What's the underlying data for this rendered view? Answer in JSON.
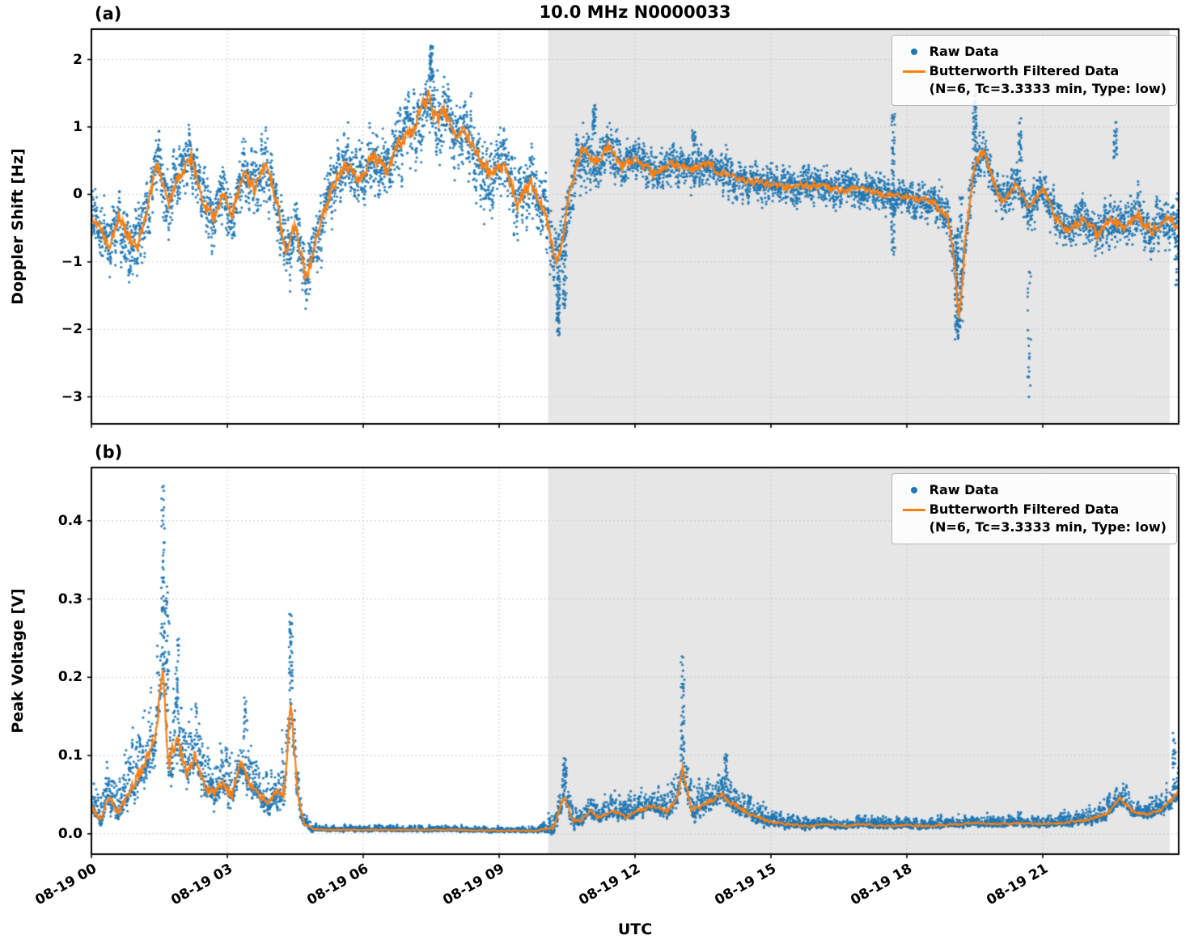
{
  "chart_data": {
    "type": "scatter",
    "title": "10.0 MHz N0000033",
    "xlabel": "UTC",
    "xlim": [
      0,
      24
    ],
    "xticks": {
      "values": [
        0,
        3,
        6,
        9,
        12,
        15,
        18,
        21
      ],
      "labels": [
        "08-19 00",
        "08-19 03",
        "08-19 06",
        "08-19 09",
        "08-19 12",
        "08-19 15",
        "08-19 18",
        "08-19 21"
      ]
    },
    "colors": {
      "raw": "#1f77b4",
      "filtered": "#ff7f0e",
      "shade": "#e6e6e6",
      "grid": "#c9c9c9"
    },
    "shaded_region": {
      "x0": 10.08,
      "x1": 23.8
    },
    "legend": {
      "raw": "Raw Data",
      "filtered": "Butterworth Filtered Data",
      "filtered_params": "(N=6, Tc=3.3333 min, Type: low)"
    },
    "panels": [
      {
        "letter": "(a)",
        "ylabel": "Doppler Shift [Hz]",
        "ylim": [
          -3.4,
          2.45
        ],
        "ytick_values": [
          2,
          1,
          0,
          -1,
          -2,
          -3
        ],
        "ytick_labels": [
          "2",
          "1",
          "0",
          "−1",
          "−2",
          "−3"
        ],
        "skew": false,
        "filtered": [
          [
            0,
            -0.35
          ],
          [
            0.2,
            -0.55
          ],
          [
            0.4,
            -0.75
          ],
          [
            0.6,
            -0.3
          ],
          [
            0.8,
            -0.6
          ],
          [
            1.0,
            -0.85
          ],
          [
            1.2,
            -0.3
          ],
          [
            1.45,
            0.45
          ],
          [
            1.7,
            -0.15
          ],
          [
            1.9,
            0.25
          ],
          [
            2.2,
            0.55
          ],
          [
            2.45,
            -0.05
          ],
          [
            2.7,
            -0.35
          ],
          [
            2.9,
            0.0
          ],
          [
            3.1,
            -0.3
          ],
          [
            3.35,
            0.3
          ],
          [
            3.6,
            0.1
          ],
          [
            3.85,
            0.45
          ],
          [
            4.1,
            -0.1
          ],
          [
            4.3,
            -0.9
          ],
          [
            4.5,
            -0.45
          ],
          [
            4.75,
            -1.25
          ],
          [
            5.0,
            -0.6
          ],
          [
            5.3,
            0.1
          ],
          [
            5.6,
            0.45
          ],
          [
            5.9,
            0.2
          ],
          [
            6.2,
            0.55
          ],
          [
            6.5,
            0.35
          ],
          [
            6.8,
            0.75
          ],
          [
            7.1,
            0.95
          ],
          [
            7.45,
            1.45
          ],
          [
            7.6,
            1.1
          ],
          [
            7.8,
            1.25
          ],
          [
            8.0,
            0.85
          ],
          [
            8.2,
            1.0
          ],
          [
            8.5,
            0.6
          ],
          [
            8.8,
            0.3
          ],
          [
            9.1,
            0.45
          ],
          [
            9.4,
            -0.1
          ],
          [
            9.7,
            0.15
          ],
          [
            10.0,
            -0.2
          ],
          [
            10.25,
            -1.05
          ],
          [
            10.4,
            -0.7
          ],
          [
            10.6,
            0.2
          ],
          [
            10.85,
            0.65
          ],
          [
            11.1,
            0.45
          ],
          [
            11.4,
            0.7
          ],
          [
            11.7,
            0.4
          ],
          [
            12.0,
            0.55
          ],
          [
            12.4,
            0.3
          ],
          [
            12.8,
            0.45
          ],
          [
            13.2,
            0.35
          ],
          [
            13.6,
            0.45
          ],
          [
            14.0,
            0.3
          ],
          [
            14.5,
            0.2
          ],
          [
            15.0,
            0.15
          ],
          [
            15.5,
            0.1
          ],
          [
            16.0,
            0.15
          ],
          [
            16.5,
            0.05
          ],
          [
            17.0,
            0.1
          ],
          [
            17.5,
            0.0
          ],
          [
            18.0,
            -0.05
          ],
          [
            18.5,
            -0.1
          ],
          [
            18.9,
            -0.3
          ],
          [
            19.05,
            -1.0
          ],
          [
            19.15,
            -1.85
          ],
          [
            19.3,
            -0.6
          ],
          [
            19.5,
            0.45
          ],
          [
            19.7,
            0.65
          ],
          [
            19.9,
            0.2
          ],
          [
            20.1,
            -0.1
          ],
          [
            20.4,
            0.15
          ],
          [
            20.7,
            -0.2
          ],
          [
            21.0,
            0.1
          ],
          [
            21.3,
            -0.35
          ],
          [
            21.6,
            -0.55
          ],
          [
            21.9,
            -0.35
          ],
          [
            22.2,
            -0.6
          ],
          [
            22.5,
            -0.35
          ],
          [
            22.8,
            -0.5
          ],
          [
            23.1,
            -0.3
          ],
          [
            23.4,
            -0.55
          ],
          [
            23.7,
            -0.35
          ],
          [
            24.0,
            -0.5
          ]
        ],
        "spread": [
          [
            0,
            0.45
          ],
          [
            1,
            0.5
          ],
          [
            2,
            0.45
          ],
          [
            3,
            0.45
          ],
          [
            4,
            0.5
          ],
          [
            5,
            0.5
          ],
          [
            6,
            0.5
          ],
          [
            6.8,
            0.55
          ],
          [
            7.45,
            0.6
          ],
          [
            8,
            0.55
          ],
          [
            8.8,
            0.5
          ],
          [
            9.5,
            0.55
          ],
          [
            10.25,
            0.5
          ],
          [
            10.8,
            0.45
          ],
          [
            11.5,
            0.35
          ],
          [
            12,
            0.3
          ],
          [
            13,
            0.3
          ],
          [
            14,
            0.3
          ],
          [
            15,
            0.28
          ],
          [
            16,
            0.28
          ],
          [
            17,
            0.26
          ],
          [
            18,
            0.26
          ],
          [
            18.9,
            0.3
          ],
          [
            19.15,
            0.35
          ],
          [
            19.7,
            0.35
          ],
          [
            20.5,
            0.3
          ],
          [
            21.5,
            0.32
          ],
          [
            22.5,
            0.35
          ],
          [
            23.5,
            0.38
          ],
          [
            24,
            0.4
          ]
        ],
        "outliers": [
          {
            "x": 7.5,
            "y0": 1.7,
            "y1": 2.2,
            "n": 50
          },
          {
            "x": 10.3,
            "y0": -2.1,
            "y1": -1.2,
            "n": 60
          },
          {
            "x": 10.45,
            "y0": -1.7,
            "y1": -0.8,
            "n": 35
          },
          {
            "x": 11.1,
            "y0": 0.9,
            "y1": 1.35,
            "n": 30
          },
          {
            "x": 13.3,
            "y0": 0.6,
            "y1": 0.95,
            "n": 20
          },
          {
            "x": 17.7,
            "y0": -0.9,
            "y1": 1.2,
            "n": 70
          },
          {
            "x": 19.1,
            "y0": -2.15,
            "y1": -0.5,
            "n": 90
          },
          {
            "x": 19.2,
            "y0": -1.9,
            "y1": 0.0,
            "n": 50
          },
          {
            "x": 19.5,
            "y0": 0.6,
            "y1": 1.5,
            "n": 45
          },
          {
            "x": 20.5,
            "y0": 0.5,
            "y1": 1.15,
            "n": 25
          },
          {
            "x": 20.7,
            "y0": -3.05,
            "y1": -1.1,
            "n": 22
          },
          {
            "x": 22.6,
            "y0": 0.5,
            "y1": 1.15,
            "n": 25
          },
          {
            "x": 23.95,
            "y0": -1.35,
            "y1": -0.6,
            "n": 18
          }
        ]
      },
      {
        "letter": "(b)",
        "ylabel": "Peak Voltage [V]",
        "ylim": [
          -0.026,
          0.468
        ],
        "ytick_values": [
          0.4,
          0.3,
          0.2,
          0.1,
          0.0
        ],
        "ytick_labels": [
          "0.4",
          "0.3",
          "0.2",
          "0.1",
          "0.0"
        ],
        "skew": true,
        "clamp_min": -0.002,
        "filtered": [
          [
            0,
            0.035
          ],
          [
            0.2,
            0.02
          ],
          [
            0.4,
            0.045
          ],
          [
            0.6,
            0.03
          ],
          [
            0.8,
            0.05
          ],
          [
            1.0,
            0.07
          ],
          [
            1.2,
            0.09
          ],
          [
            1.4,
            0.12
          ],
          [
            1.58,
            0.22
          ],
          [
            1.7,
            0.09
          ],
          [
            1.9,
            0.12
          ],
          [
            2.1,
            0.08
          ],
          [
            2.3,
            0.1
          ],
          [
            2.5,
            0.06
          ],
          [
            2.7,
            0.05
          ],
          [
            2.9,
            0.065
          ],
          [
            3.1,
            0.05
          ],
          [
            3.3,
            0.09
          ],
          [
            3.5,
            0.065
          ],
          [
            3.7,
            0.05
          ],
          [
            3.9,
            0.04
          ],
          [
            4.1,
            0.055
          ],
          [
            4.25,
            0.05
          ],
          [
            4.4,
            0.17
          ],
          [
            4.55,
            0.05
          ],
          [
            4.7,
            0.012
          ],
          [
            4.9,
            0.006
          ],
          [
            5.3,
            0.005
          ],
          [
            6.0,
            0.005
          ],
          [
            7.0,
            0.005
          ],
          [
            8.0,
            0.005
          ],
          [
            9.0,
            0.004
          ],
          [
            9.8,
            0.004
          ],
          [
            10.2,
            0.008
          ],
          [
            10.45,
            0.05
          ],
          [
            10.6,
            0.018
          ],
          [
            10.8,
            0.015
          ],
          [
            11.0,
            0.03
          ],
          [
            11.2,
            0.02
          ],
          [
            11.5,
            0.03
          ],
          [
            11.8,
            0.022
          ],
          [
            12.1,
            0.03
          ],
          [
            12.4,
            0.035
          ],
          [
            12.7,
            0.028
          ],
          [
            12.95,
            0.05
          ],
          [
            13.05,
            0.085
          ],
          [
            13.25,
            0.03
          ],
          [
            13.6,
            0.04
          ],
          [
            13.9,
            0.05
          ],
          [
            14.1,
            0.04
          ],
          [
            14.4,
            0.03
          ],
          [
            14.7,
            0.02
          ],
          [
            15.0,
            0.015
          ],
          [
            15.4,
            0.012
          ],
          [
            15.8,
            0.01
          ],
          [
            16.2,
            0.012
          ],
          [
            16.6,
            0.01
          ],
          [
            17.0,
            0.012
          ],
          [
            17.5,
            0.01
          ],
          [
            18.0,
            0.011
          ],
          [
            18.5,
            0.01
          ],
          [
            19.0,
            0.012
          ],
          [
            19.5,
            0.014
          ],
          [
            20.0,
            0.012
          ],
          [
            20.5,
            0.014
          ],
          [
            21.0,
            0.012
          ],
          [
            21.5,
            0.014
          ],
          [
            22.0,
            0.018
          ],
          [
            22.4,
            0.025
          ],
          [
            22.7,
            0.045
          ],
          [
            23.0,
            0.028
          ],
          [
            23.3,
            0.025
          ],
          [
            23.6,
            0.03
          ],
          [
            23.8,
            0.04
          ],
          [
            24.0,
            0.055
          ]
        ],
        "spread": [
          [
            0,
            0.02
          ],
          [
            0.5,
            0.025
          ],
          [
            1.0,
            0.04
          ],
          [
            1.6,
            0.06
          ],
          [
            2.0,
            0.045
          ],
          [
            2.5,
            0.03
          ],
          [
            3.0,
            0.03
          ],
          [
            3.5,
            0.028
          ],
          [
            4.0,
            0.022
          ],
          [
            4.4,
            0.05
          ],
          [
            4.7,
            0.008
          ],
          [
            5.0,
            0.003
          ],
          [
            6,
            0.003
          ],
          [
            8,
            0.003
          ],
          [
            9.8,
            0.003
          ],
          [
            10.45,
            0.02
          ],
          [
            10.8,
            0.01
          ],
          [
            11.5,
            0.012
          ],
          [
            12.5,
            0.012
          ],
          [
            13.05,
            0.028
          ],
          [
            13.6,
            0.015
          ],
          [
            14.1,
            0.018
          ],
          [
            14.7,
            0.012
          ],
          [
            15.2,
            0.008
          ],
          [
            16,
            0.006
          ],
          [
            17,
            0.006
          ],
          [
            18,
            0.006
          ],
          [
            19,
            0.006
          ],
          [
            20,
            0.006
          ],
          [
            21,
            0.006
          ],
          [
            22,
            0.008
          ],
          [
            22.7,
            0.014
          ],
          [
            23.3,
            0.009
          ],
          [
            24,
            0.016
          ]
        ],
        "outliers": [
          {
            "x": 1.58,
            "y0": 0.25,
            "y1": 0.445,
            "n": 45
          },
          {
            "x": 1.68,
            "y0": 0.2,
            "y1": 0.32,
            "n": 28
          },
          {
            "x": 1.9,
            "y0": 0.16,
            "y1": 0.25,
            "n": 22
          },
          {
            "x": 3.4,
            "y0": 0.12,
            "y1": 0.175,
            "n": 18
          },
          {
            "x": 4.4,
            "y0": 0.2,
            "y1": 0.285,
            "n": 35
          },
          {
            "x": 10.45,
            "y0": 0.06,
            "y1": 0.098,
            "n": 22
          },
          {
            "x": 13.05,
            "y0": 0.1,
            "y1": 0.228,
            "n": 40
          },
          {
            "x": 14.0,
            "y0": 0.07,
            "y1": 0.105,
            "n": 18
          },
          {
            "x": 23.9,
            "y0": 0.08,
            "y1": 0.13,
            "n": 18
          }
        ]
      }
    ]
  }
}
